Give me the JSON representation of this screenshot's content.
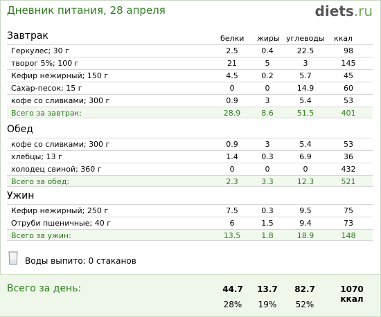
{
  "header": {
    "title": "Дневник питания, 28 апреля"
  },
  "logo": {
    "brand": "diets",
    "dot": ".",
    "tld": "ru"
  },
  "columns": {
    "protein": "белки",
    "fat": "жиры",
    "carbs": "углеводы",
    "kcal": "ккал"
  },
  "meals": [
    {
      "title": "Завтрак",
      "items": [
        {
          "name": "Геркулес; 30 г",
          "protein": "2.5",
          "fat": "0.4",
          "carbs": "22.5",
          "kcal": "98"
        },
        {
          "name": "творог 5%; 100 г",
          "protein": "21",
          "fat": "5",
          "carbs": "3",
          "kcal": "145"
        },
        {
          "name": "Кефир нежирный; 150 г",
          "protein": "4.5",
          "fat": "0.2",
          "carbs": "5.7",
          "kcal": "45"
        },
        {
          "name": "Сахар-песок; 15 г",
          "protein": "0",
          "fat": "0",
          "carbs": "14.9",
          "kcal": "60"
        },
        {
          "name": "кофе со сливками; 300 г",
          "protein": "0.9",
          "fat": "3",
          "carbs": "5.4",
          "kcal": "53"
        }
      ],
      "total": {
        "label": "Всего за завтрак:",
        "protein": "28.9",
        "fat": "8.6",
        "carbs": "51.5",
        "kcal": "401"
      }
    },
    {
      "title": "Обед",
      "items": [
        {
          "name": "кофе со сливками; 300 г",
          "protein": "0.9",
          "fat": "3",
          "carbs": "5.4",
          "kcal": "53"
        },
        {
          "name": "хлебцы; 13 г",
          "protein": "1.4",
          "fat": "0.3",
          "carbs": "6.9",
          "kcal": "36"
        },
        {
          "name": "холодец свиной; 360 г",
          "protein": "0",
          "fat": "0",
          "carbs": "0",
          "kcal": "432"
        }
      ],
      "total": {
        "label": "Всего за обед:",
        "protein": "2.3",
        "fat": "3.3",
        "carbs": "12.3",
        "kcal": "521"
      }
    },
    {
      "title": "Ужин",
      "items": [
        {
          "name": "Кефир нежирный; 250 г",
          "protein": "7.5",
          "fat": "0.3",
          "carbs": "9.5",
          "kcal": "75"
        },
        {
          "name": "Отруби пшеничные; 40 г",
          "protein": "6",
          "fat": "1.5",
          "carbs": "9.4",
          "kcal": "73"
        }
      ],
      "total": {
        "label": "Всего за ужин:",
        "protein": "13.5",
        "fat": "1.8",
        "carbs": "18.9",
        "kcal": "148"
      }
    }
  ],
  "water": {
    "label": "Воды выпито: 0 стаканов",
    "icon": "glass-icon"
  },
  "day": {
    "label": "Всего за день:",
    "protein": "44.7",
    "fat": "13.7",
    "carbs": "82.7",
    "kcal": "1070 ккал",
    "protein_pct": "28%",
    "fat_pct": "19%",
    "carbs_pct": "52%"
  }
}
